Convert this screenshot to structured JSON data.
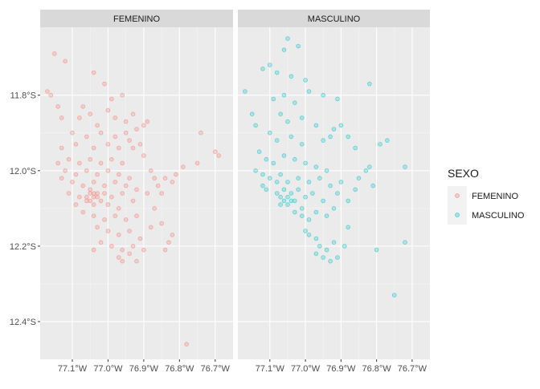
{
  "chart_data": {
    "type": "scatter",
    "facet_var": "SEXO",
    "facets": [
      "FEMENINO",
      "MASCULINO"
    ],
    "x_ticks": [
      {
        "value": -77.1,
        "label": "77.1°W"
      },
      {
        "value": -77.0,
        "label": "77.0°W"
      },
      {
        "value": -76.9,
        "label": "76.9°W"
      },
      {
        "value": -76.8,
        "label": "76.8°W"
      },
      {
        "value": -76.7,
        "label": "76.7°W"
      }
    ],
    "y_ticks": [
      {
        "value": -11.8,
        "label": "11.8°S"
      },
      {
        "value": -12.0,
        "label": "12.0°S"
      },
      {
        "value": -12.2,
        "label": "12.2°S"
      },
      {
        "value": -12.4,
        "label": "12.4°S"
      }
    ],
    "xlim": [
      -77.19,
      -76.65
    ],
    "ylim": [
      -12.5,
      -11.62
    ],
    "grid": true,
    "legend": {
      "title": "SEXO",
      "position": "right",
      "entries": [
        {
          "label": "FEMENINO",
          "color": "#F8766D"
        },
        {
          "label": "MASCULINO",
          "color": "#00BFC4"
        }
      ]
    },
    "series": [
      {
        "facet": "FEMENINO",
        "color": "#F8766D",
        "points": [
          [
            -77.15,
            -11.69
          ],
          [
            -77.12,
            -11.71
          ],
          [
            -77.04,
            -11.74
          ],
          [
            -77.17,
            -11.79
          ],
          [
            -77.16,
            -11.8
          ],
          [
            -77.14,
            -11.83
          ],
          [
            -77.01,
            -11.77
          ],
          [
            -76.99,
            -11.81
          ],
          [
            -76.96,
            -11.8
          ],
          [
            -77.0,
            -11.84
          ],
          [
            -77.05,
            -11.85
          ],
          [
            -77.08,
            -11.86
          ],
          [
            -77.03,
            -11.88
          ],
          [
            -76.98,
            -11.86
          ],
          [
            -76.95,
            -11.87
          ],
          [
            -76.93,
            -11.85
          ],
          [
            -76.92,
            -11.89
          ],
          [
            -76.9,
            -11.88
          ],
          [
            -76.89,
            -11.87
          ],
          [
            -76.95,
            -11.9
          ],
          [
            -76.98,
            -11.91
          ],
          [
            -77.02,
            -11.9
          ],
          [
            -77.06,
            -11.91
          ],
          [
            -77.1,
            -11.9
          ],
          [
            -77.13,
            -11.94
          ],
          [
            -77.09,
            -11.93
          ],
          [
            -77.04,
            -11.94
          ],
          [
            -77.0,
            -11.93
          ],
          [
            -76.97,
            -11.94
          ],
          [
            -76.94,
            -11.92
          ],
          [
            -76.91,
            -11.93
          ],
          [
            -77.11,
            -11.97
          ],
          [
            -77.08,
            -11.98
          ],
          [
            -77.05,
            -11.97
          ],
          [
            -77.02,
            -11.98
          ],
          [
            -76.99,
            -11.97
          ],
          [
            -76.96,
            -11.98
          ],
          [
            -77.12,
            -12.0
          ],
          [
            -77.09,
            -12.01
          ],
          [
            -77.06,
            -12.0
          ],
          [
            -77.03,
            -12.01
          ],
          [
            -77.0,
            -12.0
          ],
          [
            -76.97,
            -12.01
          ],
          [
            -76.94,
            -12.02
          ],
          [
            -77.1,
            -12.03
          ],
          [
            -77.07,
            -12.04
          ],
          [
            -77.04,
            -12.03
          ],
          [
            -77.01,
            -12.04
          ],
          [
            -76.98,
            -12.03
          ],
          [
            -76.95,
            -12.04
          ],
          [
            -76.92,
            -12.05
          ],
          [
            -76.89,
            -12.06
          ],
          [
            -77.11,
            -12.06
          ],
          [
            -77.08,
            -12.07
          ],
          [
            -77.05,
            -12.06
          ],
          [
            -77.03,
            -12.07
          ],
          [
            -77.01,
            -12.06
          ],
          [
            -76.99,
            -12.07
          ],
          [
            -76.96,
            -12.06
          ],
          [
            -76.93,
            -12.08
          ],
          [
            -77.09,
            -12.09
          ],
          [
            -77.06,
            -12.08
          ],
          [
            -77.04,
            -12.09
          ],
          [
            -77.02,
            -12.08
          ],
          [
            -77.0,
            -12.09
          ],
          [
            -76.97,
            -12.1
          ],
          [
            -77.06,
            -12.07
          ],
          [
            -77.05,
            -12.08
          ],
          [
            -77.04,
            -12.07
          ],
          [
            -77.03,
            -12.06
          ],
          [
            -77.05,
            -12.05
          ],
          [
            -77.04,
            -12.06
          ],
          [
            -77.07,
            -12.11
          ],
          [
            -77.04,
            -12.12
          ],
          [
            -77.01,
            -12.13
          ],
          [
            -76.98,
            -12.12
          ],
          [
            -76.95,
            -12.13
          ],
          [
            -76.92,
            -12.12
          ],
          [
            -77.03,
            -12.15
          ],
          [
            -77.0,
            -12.16
          ],
          [
            -76.97,
            -12.17
          ],
          [
            -76.94,
            -12.16
          ],
          [
            -76.91,
            -12.18
          ],
          [
            -76.88,
            -12.15
          ],
          [
            -77.02,
            -12.19
          ],
          [
            -76.99,
            -12.2
          ],
          [
            -76.96,
            -12.21
          ],
          [
            -76.93,
            -12.2
          ],
          [
            -76.9,
            -12.21
          ],
          [
            -77.04,
            -12.21
          ],
          [
            -76.97,
            -12.23
          ],
          [
            -76.96,
            -12.24
          ],
          [
            -76.94,
            -12.22
          ],
          [
            -76.92,
            -12.24
          ],
          [
            -76.87,
            -12.1
          ],
          [
            -76.85,
            -12.14
          ],
          [
            -76.83,
            -12.19
          ],
          [
            -76.84,
            -12.21
          ],
          [
            -76.82,
            -12.17
          ],
          [
            -76.86,
            -12.04
          ],
          [
            -76.84,
            -12.02
          ],
          [
            -76.82,
            -12.03
          ],
          [
            -76.81,
            -12.01
          ],
          [
            -76.79,
            -11.99
          ],
          [
            -76.75,
            -11.98
          ],
          [
            -76.7,
            -11.95
          ],
          [
            -76.69,
            -11.96
          ],
          [
            -76.74,
            -11.9
          ],
          [
            -76.87,
            -12.02
          ],
          [
            -76.88,
            -12.0
          ],
          [
            -76.85,
            -12.06
          ],
          [
            -76.78,
            -12.46
          ],
          [
            -77.13,
            -11.86
          ],
          [
            -77.07,
            -11.83
          ],
          [
            -76.93,
            -11.94
          ],
          [
            -76.9,
            -11.96
          ],
          [
            -77.14,
            -11.98
          ],
          [
            -77.13,
            -12.02
          ]
        ]
      },
      {
        "facet": "MASCULINO",
        "color": "#00BFC4",
        "points": [
          [
            -77.05,
            -11.65
          ],
          [
            -77.06,
            -11.68
          ],
          [
            -77.02,
            -11.67
          ],
          [
            -77.1,
            -11.72
          ],
          [
            -77.08,
            -11.74
          ],
          [
            -77.04,
            -11.75
          ],
          [
            -77.0,
            -11.76
          ],
          [
            -77.12,
            -11.73
          ],
          [
            -77.17,
            -11.79
          ],
          [
            -77.09,
            -11.81
          ],
          [
            -77.06,
            -11.8
          ],
          [
            -77.03,
            -11.82
          ],
          [
            -76.99,
            -11.79
          ],
          [
            -76.95,
            -11.8
          ],
          [
            -76.91,
            -11.81
          ],
          [
            -76.82,
            -11.77
          ],
          [
            -77.07,
            -11.85
          ],
          [
            -77.05,
            -11.87
          ],
          [
            -77.01,
            -11.86
          ],
          [
            -76.97,
            -11.88
          ],
          [
            -76.92,
            -11.89
          ],
          [
            -76.9,
            -11.88
          ],
          [
            -76.93,
            -11.91
          ],
          [
            -76.95,
            -11.92
          ],
          [
            -77.1,
            -11.9
          ],
          [
            -77.08,
            -11.92
          ],
          [
            -77.04,
            -11.91
          ],
          [
            -77.01,
            -11.93
          ],
          [
            -77.13,
            -11.95
          ],
          [
            -77.11,
            -11.97
          ],
          [
            -77.09,
            -11.98
          ],
          [
            -77.06,
            -11.96
          ],
          [
            -77.03,
            -11.97
          ],
          [
            -77.0,
            -11.98
          ],
          [
            -76.97,
            -11.99
          ],
          [
            -76.94,
            -12.0
          ],
          [
            -77.12,
            -12.01
          ],
          [
            -77.1,
            -12.02
          ],
          [
            -77.07,
            -12.01
          ],
          [
            -77.05,
            -12.03
          ],
          [
            -77.02,
            -12.02
          ],
          [
            -76.99,
            -12.03
          ],
          [
            -76.96,
            -12.02
          ],
          [
            -76.93,
            -12.04
          ],
          [
            -76.9,
            -12.03
          ],
          [
            -77.11,
            -12.05
          ],
          [
            -77.08,
            -12.06
          ],
          [
            -77.06,
            -12.05
          ],
          [
            -77.04,
            -12.06
          ],
          [
            -77.02,
            -12.05
          ],
          [
            -77.0,
            -12.07
          ],
          [
            -76.98,
            -12.06
          ],
          [
            -76.95,
            -12.08
          ],
          [
            -77.07,
            -12.07
          ],
          [
            -77.06,
            -12.08
          ],
          [
            -77.05,
            -12.07
          ],
          [
            -77.04,
            -12.08
          ],
          [
            -77.05,
            -12.09
          ],
          [
            -77.03,
            -12.08
          ],
          [
            -77.07,
            -12.09
          ],
          [
            -77.03,
            -12.11
          ],
          [
            -77.01,
            -12.12
          ],
          [
            -76.99,
            -12.13
          ],
          [
            -76.97,
            -12.11
          ],
          [
            -76.94,
            -12.12
          ],
          [
            -76.92,
            -12.1
          ],
          [
            -77.0,
            -12.16
          ],
          [
            -76.99,
            -12.17
          ],
          [
            -76.97,
            -12.18
          ],
          [
            -76.96,
            -12.2
          ],
          [
            -76.94,
            -12.21
          ],
          [
            -76.92,
            -12.19
          ],
          [
            -76.97,
            -12.22
          ],
          [
            -76.95,
            -12.23
          ],
          [
            -76.93,
            -12.24
          ],
          [
            -76.91,
            -12.23
          ],
          [
            -76.89,
            -12.2
          ],
          [
            -76.88,
            -12.15
          ],
          [
            -76.86,
            -12.05
          ],
          [
            -76.85,
            -12.02
          ],
          [
            -76.83,
            -12.0
          ],
          [
            -76.81,
            -12.04
          ],
          [
            -76.82,
            -11.99
          ],
          [
            -76.79,
            -11.93
          ],
          [
            -76.77,
            -11.92
          ],
          [
            -76.72,
            -11.99
          ],
          [
            -76.72,
            -12.19
          ],
          [
            -76.8,
            -12.21
          ],
          [
            -76.75,
            -12.33
          ],
          [
            -77.15,
            -11.85
          ],
          [
            -77.14,
            -11.88
          ],
          [
            -76.88,
            -11.91
          ],
          [
            -76.86,
            -11.94
          ],
          [
            -77.12,
            -12.04
          ],
          [
            -77.14,
            -12.0
          ],
          [
            -76.91,
            -12.06
          ],
          [
            -76.88,
            -12.08
          ],
          [
            -77.01,
            -12.1
          ],
          [
            -77.08,
            -12.03
          ]
        ]
      }
    ]
  }
}
